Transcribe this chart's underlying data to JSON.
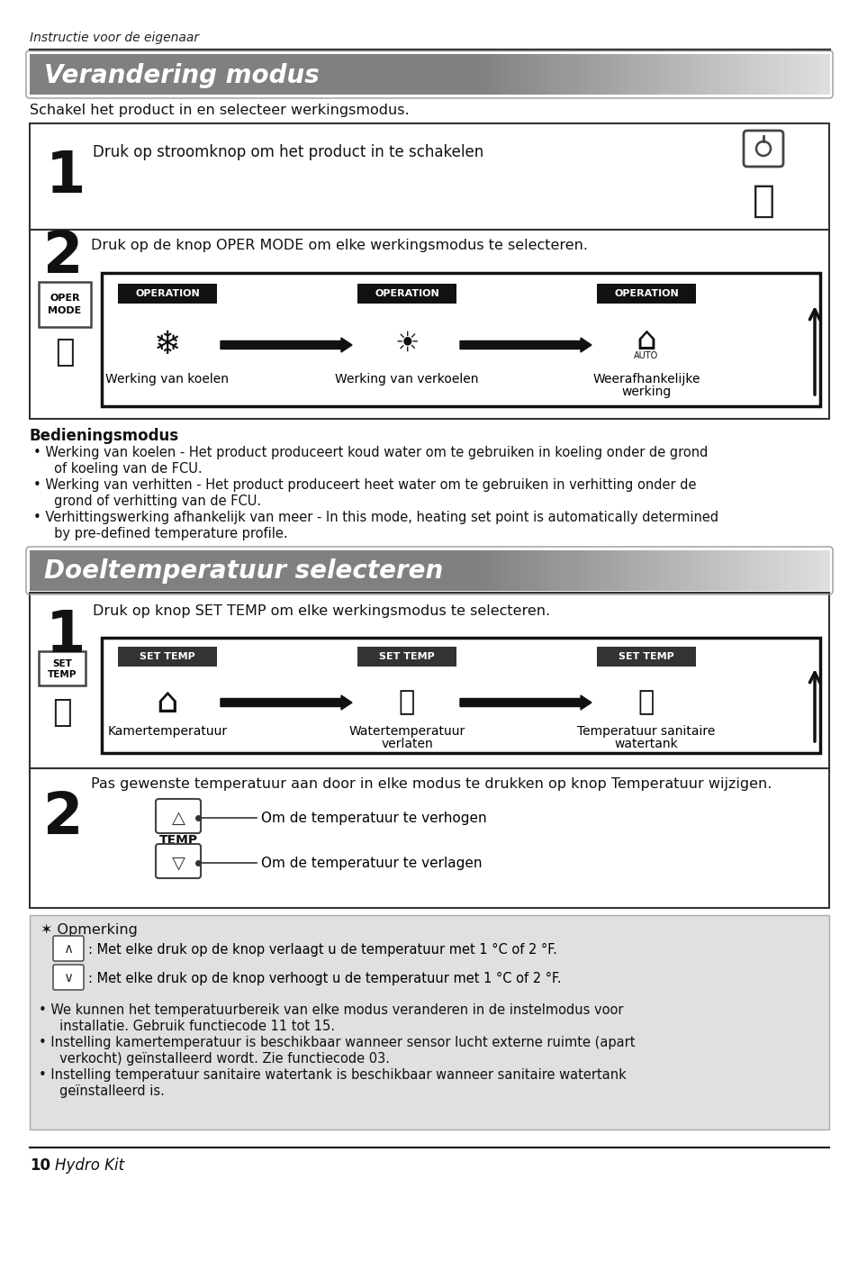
{
  "page_title": "Instructie voor de eigenaar",
  "section1_title": "Verandering modus",
  "section2_title": "Doeltemperatuur selecteren",
  "intro1": "Schakel het product in en selecteer werkingsmodus.",
  "step1_text": "Druk op stroomknop om het product in te schakelen",
  "step2_text": "Druk op de knop OPER MODE om elke werkingsmodus te selecteren.",
  "op_label1": "Werking van koelen",
  "op_label2": "Werking van verkoelen",
  "op_label3a": "Weerafhankelijke",
  "op_label3b": "werking",
  "bed_title": "Bedieningsmodus",
  "bed1a": "Werking van koelen - Het product produceert koud water om te gebruiken in koeling onder de grond",
  "bed1b": "  of koeling van de FCU.",
  "bed2a": "Werking van verhitten - Het product produceert heet water om te gebruiken in verhitting onder de",
  "bed2b": "  grond of verhitting van de FCU.",
  "bed3a": "Verhittingswerking afhankelijk van meer - In this mode, heating set point is automatically determined",
  "bed3b": "  by pre-defined temperature profile.",
  "intro2": "Druk op knop SET TEMP om elke werkingsmodus te selecteren.",
  "set_label1": "Kamertemperatuur",
  "set_label2a": "Watertemperatuur",
  "set_label2b": "verlaten",
  "set_label3a": "Temperatuur sanitaire",
  "set_label3b": "watertank",
  "step2b": "Pas gewenste temperatuur aan door in elke modus te drukken op knop Temperatuur wijzigen.",
  "temp_up": "Om de temperatuur te verhogen",
  "temp_down": "Om de temperatuur te verlagen",
  "note_title": "✶ Opmerking",
  "note1": ": Met elke druk op de knop verlaagt u de temperatuur met 1 °C of 2 °F.",
  "note2": ": Met elke druk op de knop verhoogt u de temperatuur met 1 °C of 2 °F.",
  "note3a": "We kunnen het temperatuurbereik van elke modus veranderen in de instelmodus voor",
  "note3b": "  installatie. Gebruik functiecode 11 tot 15.",
  "note4a": "Instelling kamertemperatuur is beschikbaar wanneer sensor lucht externe ruimte (apart",
  "note4b": "  verkocht) geïnstalleerd wordt. Zie functiecode 03.",
  "note5a": "Instelling temperatuur sanitaire watertank is beschikbaar wanneer sanitaire watertank",
  "note5b": "  geïnstalleerd is.",
  "footer_num": "10",
  "footer_text": "Hydro Kit"
}
